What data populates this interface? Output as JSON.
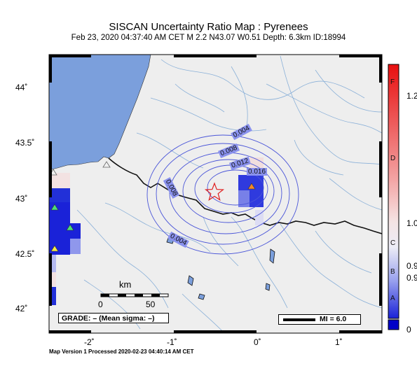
{
  "header": {
    "title": "SISCAN Uncertainty Ratio Map : Pyrenees",
    "subtitle": "Feb 23, 2020 04:37:40 AM CET   M 2.2   N43.07 W0.51   Depth: 6.3km   ID:18994"
  },
  "map": {
    "latitude_labels": [
      "44˚",
      "43.5˚",
      "43˚",
      "42.5˚",
      "42˚"
    ],
    "longitude_labels": [
      "-2˚",
      "-1˚",
      "0˚",
      "1˚"
    ],
    "contour_labels": [
      "0.004",
      "0.008",
      "0.012",
      "0.016",
      "0.008",
      "0.004"
    ],
    "scale_bar": {
      "unit": "km",
      "ticks": [
        "0",
        "50"
      ]
    },
    "grade_text": "GRADE: – (Mean sigma: –)",
    "mi_legend": "MI = 6.0",
    "colors": {
      "sea": "#7b9fdc",
      "land": "#eeeeee",
      "rivers": "#8ab0d8",
      "contours": "#4a55d8",
      "epicenter": "#e02020"
    }
  },
  "colorbar": {
    "grades": [
      "F",
      "D",
      "C",
      "B",
      "A"
    ],
    "values": [
      "1.2",
      "1.0",
      "0.9",
      "0.9",
      "0"
    ]
  },
  "footer": "Map Version 1 Processed 2020-02-23 04:40:14 AM CET"
}
